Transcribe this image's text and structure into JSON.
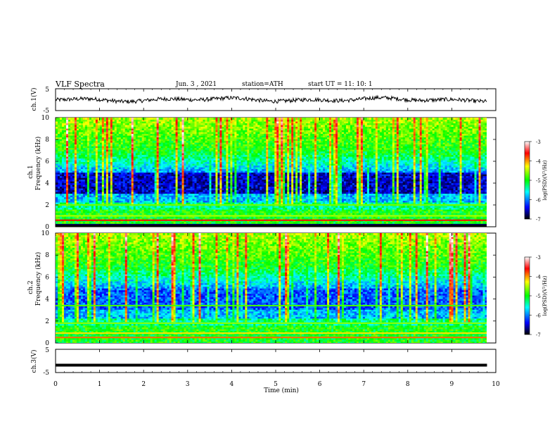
{
  "header": {
    "title": "VLF  Spectra",
    "date": "Jun. 3  , 2021",
    "station": "station=ATH",
    "start_time": "start  UT  =   11: 10: 1"
  },
  "chart_data": [
    {
      "type": "line",
      "ylabel": "ch.1(V)",
      "ylim": [
        -5,
        5
      ],
      "y_tick_labels": [
        "5",
        "-5"
      ],
      "description_level": 0
    },
    {
      "type": "heatmap",
      "ylabel_top": "ch.1",
      "ylabel": "Frequency  (kHz)",
      "ylim": [
        0,
        10
      ],
      "y_tick_labels": [
        "0",
        "2",
        "4",
        "6",
        "8",
        "10"
      ],
      "colorbar": {
        "label": "log(PSD)(V²/Hz)",
        "range": [
          -7,
          -3
        ],
        "tick_labels": [
          "-3",
          "-4",
          "-5",
          "-6",
          "-7"
        ],
        "colors": [
          "#000000",
          "#0000ff",
          "#00ffff",
          "#00ff00",
          "#ffff00",
          "#ff0000",
          "#ffffff"
        ]
      }
    },
    {
      "type": "heatmap",
      "ylabel_top": "ch.2",
      "ylabel": "Frequency  (kHz)",
      "ylim": [
        0,
        10
      ],
      "y_tick_labels": [
        "0",
        "2",
        "4",
        "6",
        "8",
        "10"
      ],
      "colorbar": {
        "label": "log(PSD)(V²/Hz)",
        "range": [
          -7,
          -3
        ],
        "tick_labels": [
          "-3",
          "-4",
          "-5",
          "-6",
          "-7"
        ],
        "colors": [
          "#000000",
          "#0000ff",
          "#00ffff",
          "#00ff00",
          "#ffff00",
          "#ff0000",
          "#ffffff"
        ]
      }
    },
    {
      "type": "line",
      "ylabel": "ch.3(V)",
      "ylim": [
        -5,
        5
      ],
      "y_tick_labels": [
        "5",
        "-5"
      ],
      "level": -1.8
    }
  ],
  "x_axis": {
    "label": "Time  (min)",
    "range": [
      0,
      10
    ],
    "tick_labels": [
      "0",
      "1",
      "2",
      "3",
      "4",
      "5",
      "6",
      "7",
      "8",
      "9",
      "10"
    ]
  }
}
